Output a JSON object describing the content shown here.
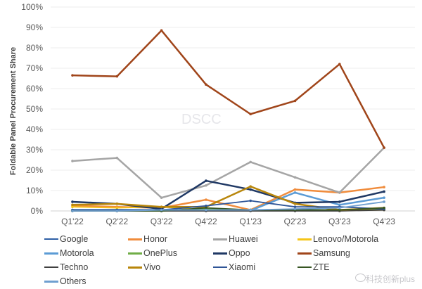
{
  "chart_data": {
    "type": "line",
    "title": "",
    "xlabel": "",
    "ylabel": "Foldable Panel Procurement Share",
    "ylim": [
      0,
      100
    ],
    "yticks": [
      "0%",
      "10%",
      "20%",
      "30%",
      "40%",
      "50%",
      "60%",
      "70%",
      "80%",
      "90%",
      "100%"
    ],
    "grid": true,
    "legend_position": "bottom",
    "categories": [
      "Q1'22",
      "Q2'22",
      "Q3'22",
      "Q4'22",
      "Q1'23",
      "Q2'23",
      "Q3'23",
      "Q4'23"
    ],
    "series": [
      {
        "name": "Google",
        "color": "#2e5fa6",
        "values": [
          0.2,
          0.5,
          0.5,
          0.5,
          0.2,
          0.5,
          0.5,
          0.5
        ]
      },
      {
        "name": "Honor",
        "color": "#f08c3c",
        "values": [
          2.5,
          2,
          1.5,
          5.5,
          0.5,
          10.5,
          9,
          11.7
        ]
      },
      {
        "name": "Huawei",
        "color": "#a5a5a5",
        "values": [
          24.5,
          26,
          6.5,
          12.5,
          24,
          16.5,
          9,
          31
        ]
      },
      {
        "name": "Lenovo/Motorola",
        "color": "#f5c518",
        "values": [
          2,
          1.5,
          2,
          0.5,
          0.2,
          0.2,
          0.2,
          0.5
        ]
      },
      {
        "name": "Motorola",
        "color": "#5b9bd5",
        "values": [
          0.5,
          0.5,
          0.5,
          0.5,
          0.2,
          9,
          3,
          6.5
        ]
      },
      {
        "name": "OnePlus",
        "color": "#70ad47",
        "values": [
          0,
          0,
          0,
          1,
          0.5,
          0.5,
          0.5,
          1
        ]
      },
      {
        "name": "Oppo",
        "color": "#1f3864",
        "values": [
          4.5,
          3.5,
          1,
          14.8,
          10.5,
          4,
          4.5,
          9.5
        ]
      },
      {
        "name": "Samsung",
        "color": "#a0451a",
        "values": [
          66.5,
          66,
          88.5,
          62,
          47.5,
          54,
          72,
          31
        ]
      },
      {
        "name": "Techno",
        "color": "#404040",
        "values": [
          0,
          0,
          0,
          0,
          0,
          0,
          0,
          0.5
        ]
      },
      {
        "name": "Vivo",
        "color": "#b8860b",
        "values": [
          3,
          3.5,
          2,
          2,
          12,
          3.5,
          0.5,
          1.5
        ]
      },
      {
        "name": "Xiaomi",
        "color": "#2f5597",
        "values": [
          0.5,
          0.5,
          0.5,
          2.5,
          5,
          2,
          2,
          1
        ]
      },
      {
        "name": "ZTE",
        "color": "#375623",
        "values": [
          0,
          0,
          0,
          1.5,
          0.5,
          0.5,
          0.5,
          1.5
        ]
      },
      {
        "name": "Others",
        "color": "#6f9fd0",
        "values": [
          0,
          0,
          0.5,
          0.5,
          0.5,
          1,
          1.5,
          4.5
        ]
      }
    ]
  },
  "watermark": "DSCC",
  "source_brand": "科技创新plus"
}
